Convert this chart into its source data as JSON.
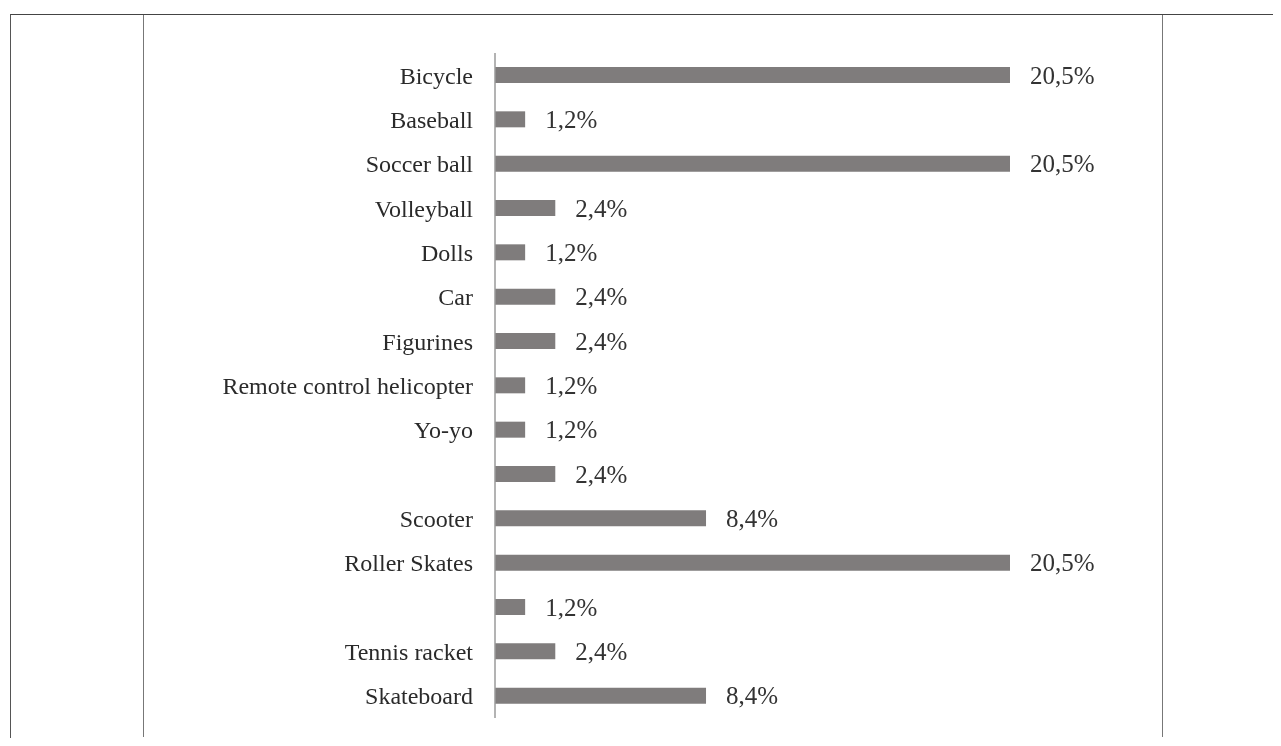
{
  "chart_data": {
    "type": "bar",
    "orientation": "horizontal",
    "categories": [
      "Bicycle",
      "Baseball",
      "Soccer ball",
      "Volleyball",
      "Dolls",
      "Car",
      "Figurines",
      "Remote control helicopter",
      "Yo-yo",
      null,
      "Scooter",
      "Roller Skates",
      null,
      "Tennis racket",
      "Skateboard"
    ],
    "values": [
      20.5,
      1.2,
      20.5,
      2.4,
      1.2,
      2.4,
      2.4,
      1.2,
      1.2,
      2.4,
      8.4,
      20.5,
      1.2,
      2.4,
      8.4
    ],
    "value_labels": [
      "20,5%",
      "1,2%",
      "20,5%",
      "2,4%",
      "1,2%",
      "2,4%",
      "2,4%",
      "1,2%",
      "1,2%",
      "2,4%",
      "8,4%",
      "20,5%",
      "1,2%",
      "2,4%",
      "8,4%"
    ],
    "color": "#7f7c7c"
  }
}
